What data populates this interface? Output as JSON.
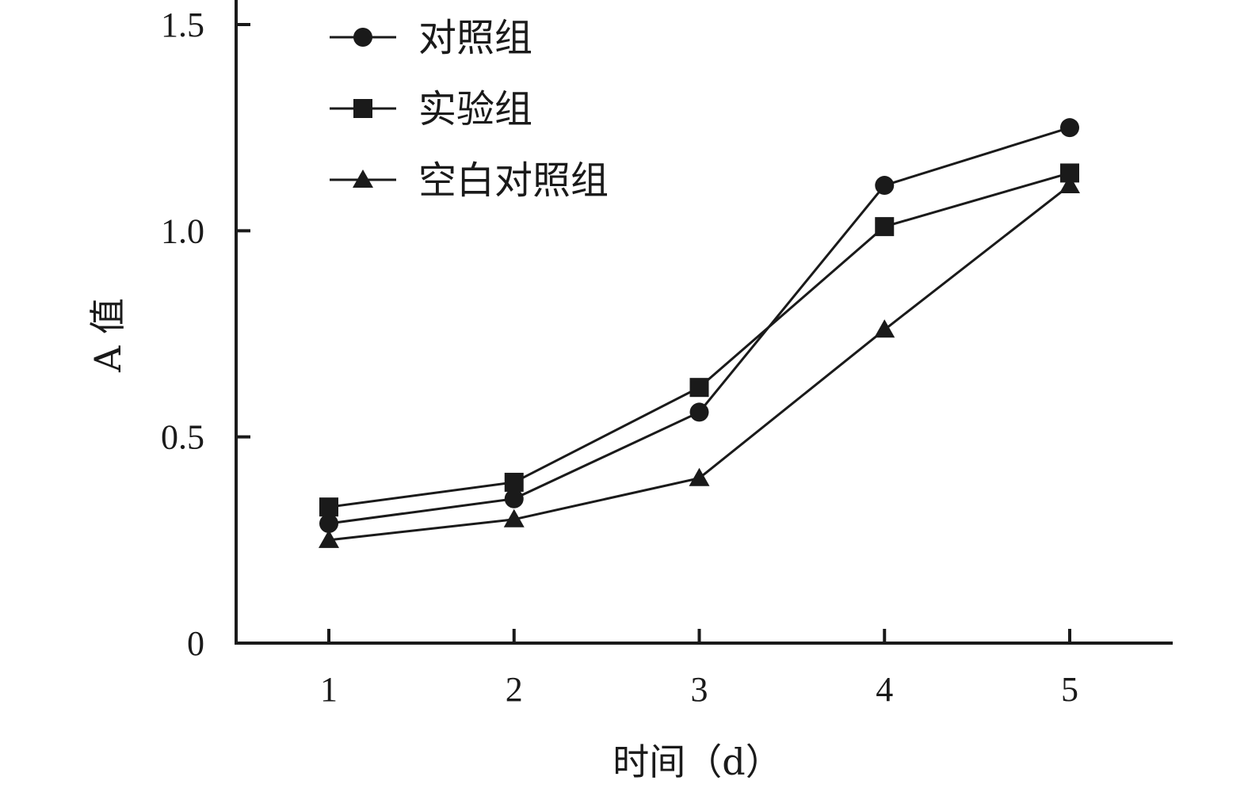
{
  "chart_data": {
    "type": "line",
    "title": "",
    "xlabel": "时间（d）",
    "ylabel": "A 值",
    "categories": [
      "1",
      "2",
      "3",
      "4",
      "5"
    ],
    "x": [
      1,
      2,
      3,
      4,
      5
    ],
    "xlim": [
      0.5,
      5.5
    ],
    "ylim": [
      0,
      1.5
    ],
    "yticks": [
      0,
      0.5,
      1.0,
      1.5
    ],
    "ytick_labels": [
      "0",
      "0.5",
      "1.0",
      "1.5"
    ],
    "grid": false,
    "legend_position": "top-left",
    "series": [
      {
        "name": "对照组",
        "marker": "circle",
        "values": [
          0.29,
          0.35,
          0.56,
          1.11,
          1.25
        ]
      },
      {
        "name": "实验组",
        "marker": "square",
        "values": [
          0.33,
          0.39,
          0.62,
          1.01,
          1.14
        ]
      },
      {
        "name": "空白对照组",
        "marker": "triangle",
        "values": [
          0.25,
          0.3,
          0.4,
          0.76,
          1.11
        ]
      }
    ],
    "colors": {
      "line": "#1a1a1a",
      "marker": "#1a1a1a",
      "axis": "#1a1a1a"
    }
  }
}
